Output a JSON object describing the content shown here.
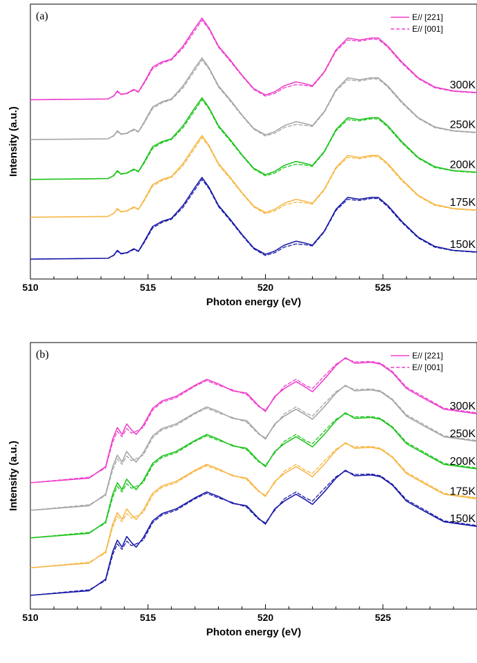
{
  "chart_data": [
    {
      "type": "line",
      "panel_label": "(a)",
      "xlabel": "Photon energy (eV)",
      "ylabel": "Intensity (a.u.)",
      "xlim": [
        510,
        529
      ],
      "x_ticks": [
        "510",
        "515",
        "520",
        "525"
      ],
      "legend_position": "top-right",
      "legend": [
        {
          "name": "E// [221]",
          "style": "solid"
        },
        {
          "name": "E// [001]",
          "style": "dashed"
        }
      ],
      "temperatures": [
        {
          "label": "300K",
          "color": "#ee3fcc",
          "offset": 4.0
        },
        {
          "label": "250K",
          "color": "#a6a6a6",
          "offset": 3.0
        },
        {
          "label": "200K",
          "color": "#1ec41e",
          "offset": 2.0
        },
        {
          "label": "175K",
          "color": "#f7b847",
          "offset": 1.05
        },
        {
          "label": "150K",
          "color": "#1a1aa8",
          "offset": 0.0
        }
      ],
      "x": [
        510,
        513.3,
        513.55,
        513.7,
        513.85,
        514.1,
        514.4,
        514.6,
        514.85,
        515.2,
        515.6,
        516.0,
        516.5,
        517.0,
        517.3,
        517.6,
        518.0,
        518.5,
        519.0,
        519.5,
        520.0,
        520.4,
        520.8,
        521.3,
        521.7,
        522.0,
        522.5,
        523.0,
        523.5,
        524.0,
        524.5,
        524.8,
        525.2,
        525.8,
        526.5,
        527.2,
        528.0,
        529.0
      ],
      "y_solid": [
        0,
        0.02,
        0.1,
        0.22,
        0.14,
        0.16,
        0.26,
        0.2,
        0.45,
        0.82,
        0.95,
        1.02,
        1.35,
        1.8,
        2.05,
        1.8,
        1.35,
        1.0,
        0.62,
        0.28,
        0.12,
        0.2,
        0.35,
        0.45,
        0.4,
        0.35,
        0.7,
        1.25,
        1.55,
        1.5,
        1.55,
        1.55,
        1.35,
        0.95,
        0.55,
        0.32,
        0.22,
        0.18
      ],
      "y_dashed": [
        0,
        0.02,
        0.09,
        0.2,
        0.13,
        0.15,
        0.24,
        0.19,
        0.42,
        0.78,
        0.92,
        1.0,
        1.3,
        1.74,
        2.0,
        1.77,
        1.32,
        0.97,
        0.6,
        0.26,
        0.09,
        0.16,
        0.3,
        0.38,
        0.36,
        0.33,
        0.68,
        1.22,
        1.5,
        1.47,
        1.52,
        1.52,
        1.32,
        0.92,
        0.53,
        0.3,
        0.21,
        0.17
      ],
      "ylim": [
        -0.5,
        6.4
      ]
    },
    {
      "type": "line",
      "panel_label": "(b)",
      "xlabel": "Photon energy (eV)",
      "ylabel": "Intensity (a.u.)",
      "xlim": [
        510,
        529
      ],
      "x_ticks": [
        "510",
        "515",
        "520",
        "525"
      ],
      "legend_position": "top-right",
      "legend": [
        {
          "name": "E// [221]",
          "style": "solid"
        },
        {
          "name": "E// [001]",
          "style": "dashed"
        }
      ],
      "temperatures": [
        {
          "label": "300K",
          "color": "#ee3fcc",
          "offset": 2.45
        },
        {
          "label": "250K",
          "color": "#a6a6a6",
          "offset": 1.85
        },
        {
          "label": "200K",
          "color": "#1ec41e",
          "offset": 1.25
        },
        {
          "label": "175K",
          "color": "#f7b847",
          "offset": 0.6
        },
        {
          "label": "150K",
          "color": "#1a1aa8",
          "offset": 0.0
        }
      ],
      "x": [
        510,
        512.5,
        513.2,
        513.5,
        513.7,
        513.9,
        514.1,
        514.3,
        514.5,
        514.8,
        515.2,
        515.6,
        516.2,
        517.0,
        517.5,
        518.0,
        518.6,
        519.2,
        519.7,
        520.0,
        520.4,
        520.8,
        521.3,
        521.7,
        522.0,
        522.5,
        523.0,
        523.4,
        523.8,
        524.5,
        524.9,
        525.4,
        526.0,
        526.8,
        527.6,
        529.0
      ],
      "y_solid": [
        0,
        0.1,
        0.35,
        0.95,
        1.2,
        1.05,
        1.28,
        1.15,
        1.05,
        1.25,
        1.62,
        1.78,
        1.88,
        2.12,
        2.25,
        2.15,
        2.0,
        1.95,
        1.68,
        1.55,
        1.88,
        2.05,
        2.2,
        2.08,
        1.98,
        2.25,
        2.55,
        2.72,
        2.6,
        2.62,
        2.58,
        2.4,
        2.05,
        1.82,
        1.6,
        1.5
      ],
      "y_dashed": [
        0,
        0.12,
        0.32,
        0.88,
        1.12,
        1.0,
        1.18,
        1.08,
        1.12,
        1.2,
        1.58,
        1.75,
        1.85,
        2.1,
        2.22,
        2.12,
        2.02,
        1.92,
        1.66,
        1.58,
        1.85,
        2.1,
        2.25,
        2.12,
        2.05,
        2.32,
        2.58,
        2.7,
        2.63,
        2.64,
        2.6,
        2.42,
        2.08,
        1.85,
        1.62,
        1.52
      ],
      "ylim": [
        -0.3,
        5.5
      ]
    }
  ]
}
